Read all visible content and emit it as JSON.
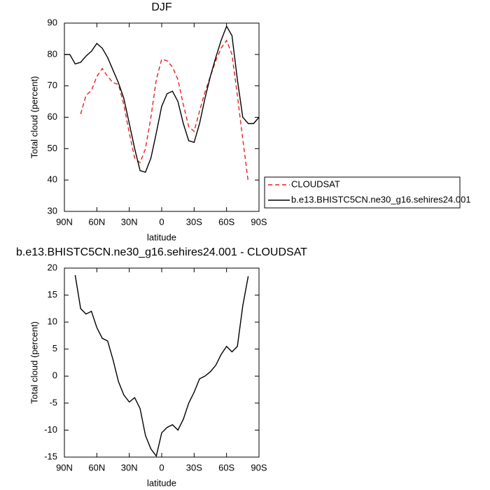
{
  "charts": [
    {
      "chart_data": {
        "type": "line",
        "title": "DJF",
        "xlabel": "latitude",
        "ylabel": "Total cloud (percent)",
        "x": [
          90,
          85,
          80,
          75,
          70,
          65,
          60,
          55,
          50,
          45,
          40,
          35,
          30,
          25,
          20,
          15,
          10,
          5,
          0,
          -5,
          -10,
          -15,
          -20,
          -25,
          -30,
          -35,
          -40,
          -45,
          -50,
          -55,
          -60,
          -65,
          -70,
          -75,
          -80,
          -85,
          -90
        ],
        "series": [
          {
            "name": "CLOUDSAT",
            "color": "#e8201f",
            "line_style": "dashed",
            "values": [
              null,
              null,
              null,
              61,
              67,
              68.5,
              73,
              75.5,
              73,
              71,
              70.5,
              64,
              55,
              47,
              45.5,
              50,
              60,
              72,
              78.5,
              78,
              76,
              72,
              64,
              57,
              55.5,
              62,
              68,
              73,
              78,
              82,
              84.5,
              80,
              67,
              53,
              39.5,
              null,
              null
            ]
          },
          {
            "name": "b.e13.BHISTC5CN.ne30_g16.sehires24.001",
            "color": "#000000",
            "line_style": "solid",
            "values": [
              80,
              80,
              77,
              77.5,
              79.5,
              81,
              83.5,
              82,
              79,
              75,
              71,
              66,
              58,
              50,
              43,
              42.5,
              47,
              55,
              63.5,
              67.5,
              68.3,
              65,
              58,
              52.5,
              52,
              58,
              66,
              73,
              79,
              84.5,
              89,
              86,
              72,
              60,
              58,
              58,
              60
            ]
          }
        ],
        "xlim": [
          90,
          -90
        ],
        "xticks": [
          {
            "value": 90,
            "label": "90N"
          },
          {
            "value": 60,
            "label": "60N"
          },
          {
            "value": 30,
            "label": "30N"
          },
          0,
          {
            "value": -30,
            "label": "30S"
          },
          {
            "value": -60,
            "label": "60S"
          },
          {
            "value": -90,
            "label": "90S"
          }
        ],
        "ylim": [
          30,
          90
        ],
        "yticks": [
          30,
          40,
          50,
          60,
          70,
          80,
          90
        ],
        "legend": "right"
      }
    },
    {
      "chart_data": {
        "type": "line",
        "title": "b.e13.BHISTC5CN.ne30_g16.sehires24.001 - CLOUDSAT",
        "xlabel": "latitude",
        "ylabel": "Total cloud (percent)",
        "x": [
          80,
          75,
          70,
          65,
          60,
          55,
          50,
          45,
          40,
          35,
          30,
          25,
          20,
          15,
          10,
          5,
          0,
          -5,
          -10,
          -15,
          -20,
          -25,
          -30,
          -35,
          -40,
          -45,
          -50,
          -55,
          -60,
          -65,
          -70,
          -75,
          -80
        ],
        "series": [
          {
            "color": "#000000",
            "line_style": "solid",
            "values": [
              18.7,
              12.5,
              11.5,
              12,
              9,
              7,
              6.5,
              3,
              -1,
              -3.5,
              -4.8,
              -4,
              -6,
              -11,
              -13.5,
              -14.8,
              -10.5,
              -9.5,
              -9,
              -10,
              -8,
              -5,
              -3,
              -0.5,
              0,
              0.8,
              2,
              4,
              5.5,
              4.5,
              5.5,
              13,
              18.5
            ]
          }
        ],
        "xlim": [
          90,
          -90
        ],
        "xticks": [
          {
            "value": 90,
            "label": "90N"
          },
          {
            "value": 60,
            "label": "60N"
          },
          {
            "value": 30,
            "label": "30N"
          },
          0,
          {
            "value": -30,
            "label": "30S"
          },
          {
            "value": -60,
            "label": "60S"
          },
          {
            "value": -90,
            "label": "90S"
          }
        ],
        "ylim": [
          -15,
          20
        ],
        "yticks": [
          -15,
          -10,
          -5,
          0,
          5,
          10,
          15,
          20
        ]
      }
    }
  ]
}
